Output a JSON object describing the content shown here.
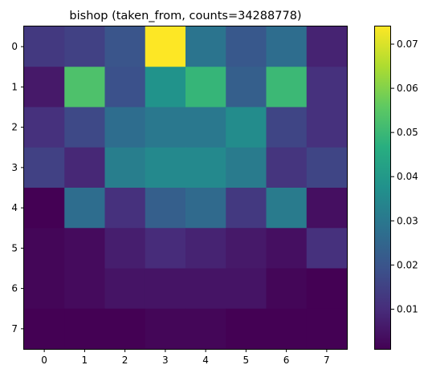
{
  "chart_data": {
    "type": "heatmap",
    "title": "bishop (taken_from, counts=34288778)",
    "xlabel": "",
    "ylabel": "",
    "x_categories": [
      "0",
      "1",
      "2",
      "3",
      "4",
      "5",
      "6",
      "7"
    ],
    "y_categories": [
      "0",
      "1",
      "2",
      "3",
      "4",
      "5",
      "6",
      "7"
    ],
    "values": [
      [
        0.013,
        0.015,
        0.02,
        0.074,
        0.029,
        0.021,
        0.027,
        0.008
      ],
      [
        0.006,
        0.053,
        0.019,
        0.038,
        0.049,
        0.023,
        0.05,
        0.011
      ],
      [
        0.011,
        0.017,
        0.027,
        0.03,
        0.03,
        0.036,
        0.016,
        0.011
      ],
      [
        0.015,
        0.009,
        0.032,
        0.035,
        0.035,
        0.031,
        0.012,
        0.016
      ],
      [
        0.001,
        0.027,
        0.011,
        0.023,
        0.026,
        0.013,
        0.031,
        0.004
      ],
      [
        0.002,
        0.003,
        0.007,
        0.01,
        0.008,
        0.006,
        0.004,
        0.011
      ],
      [
        0.002,
        0.003,
        0.005,
        0.005,
        0.005,
        0.005,
        0.002,
        0.001
      ],
      [
        0.001,
        0.001,
        0.001,
        0.002,
        0.002,
        0.001,
        0.001,
        0.001
      ]
    ],
    "colormap": "viridis",
    "vmin": 0.001,
    "vmax": 0.074,
    "colorbar_ticks": [
      "0.01",
      "0.02",
      "0.03",
      "0.04",
      "0.05",
      "0.06",
      "0.07"
    ],
    "colorbar_tick_values": [
      0.01,
      0.02,
      0.03,
      0.04,
      0.05,
      0.06,
      0.07
    ],
    "grid": false
  }
}
